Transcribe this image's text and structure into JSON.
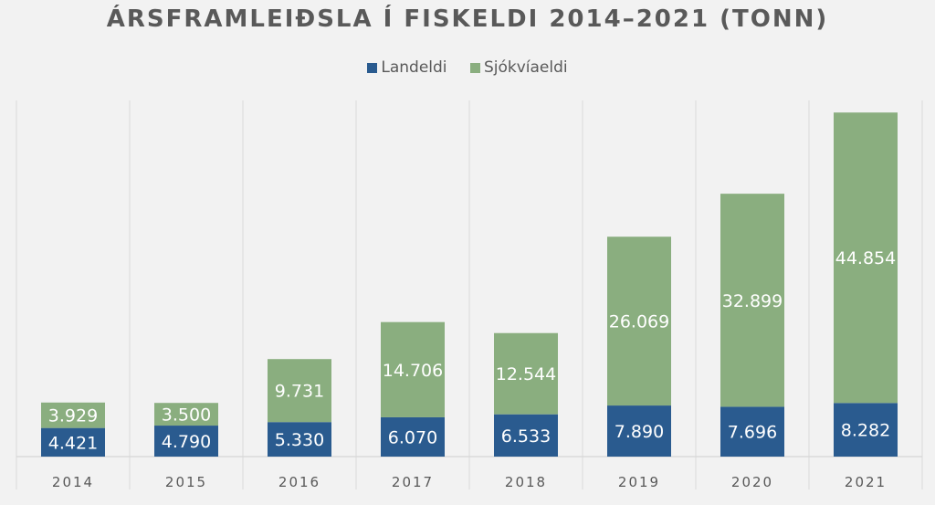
{
  "chart_data": {
    "type": "bar",
    "stacked": true,
    "title": "ÁRSFRAMLEIÐSLA Í FISKELDI 2014–2021 (TONN)",
    "xlabel": "",
    "ylabel": "",
    "categories": [
      "2014",
      "2015",
      "2016",
      "2017",
      "2018",
      "2019",
      "2020",
      "2021"
    ],
    "series": [
      {
        "name": "Landeldi",
        "color": "#2a5b8f",
        "values": [
          4421,
          4790,
          5330,
          6070,
          6533,
          7890,
          7696,
          8282
        ],
        "labels": [
          "4.421",
          "4.790",
          "5.330",
          "6.070",
          "6.533",
          "7.890",
          "7.696",
          "8.282"
        ]
      },
      {
        "name": "Sjókvíaeldi",
        "color": "#8aae7f",
        "values": [
          3929,
          3500,
          9731,
          14706,
          12544,
          26069,
          32899,
          44854
        ],
        "labels": [
          "3.929",
          "3.500",
          "9.731",
          "14.706",
          "12.544",
          "26.069",
          "32.899",
          "44.854"
        ]
      }
    ],
    "ylim": [
      0,
      55000
    ],
    "grid": "vertical category separators",
    "legend": "top-center"
  }
}
